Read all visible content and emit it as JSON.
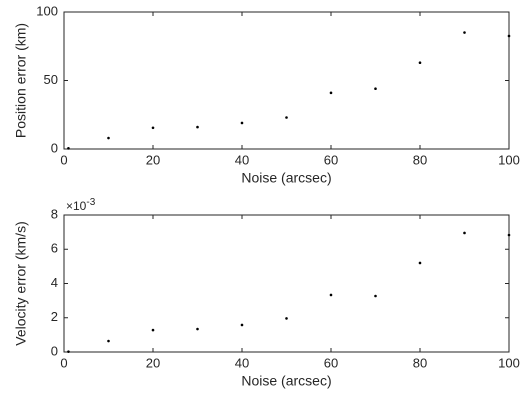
{
  "chart_data": [
    {
      "type": "scatter",
      "xlabel": "Noise (arcsec)",
      "ylabel": "Position error (km)",
      "color": "#000000",
      "x": [
        1,
        10,
        20,
        30,
        40,
        50,
        60,
        70,
        80,
        90,
        100
      ],
      "values": [
        0.5,
        8,
        15.5,
        16,
        19,
        23,
        41,
        44,
        63,
        85,
        82.5
      ],
      "xlim": [
        0,
        100
      ],
      "xticks": [
        0,
        20,
        40,
        60,
        80,
        100
      ],
      "ylim": [
        0,
        100
      ],
      "yticks": [
        0,
        50,
        100
      ]
    },
    {
      "type": "scatter",
      "xlabel": "Noise (arcsec)",
      "ylabel": "Velocity error (km/s)",
      "color": "#000000",
      "multiplier": {
        "base": "×10",
        "exponent": "-3"
      },
      "x": [
        1,
        10,
        20,
        30,
        40,
        50,
        60,
        70,
        80,
        90,
        100
      ],
      "values": [
        2e-05,
        0.00064,
        0.00128,
        0.00134,
        0.00158,
        0.00196,
        0.00333,
        0.00327,
        0.0052,
        0.00695,
        0.00683
      ],
      "xlim": [
        0,
        100
      ],
      "xticks": [
        0,
        20,
        40,
        60,
        80,
        100
      ],
      "ylim": [
        0,
        0.008
      ],
      "yticks": [
        {
          "value": 0,
          "label": "0"
        },
        {
          "value": 0.002,
          "label": "2"
        },
        {
          "value": 0.004,
          "label": "4"
        },
        {
          "value": 0.006,
          "label": "6"
        },
        {
          "value": 0.008,
          "label": "8"
        }
      ]
    }
  ]
}
